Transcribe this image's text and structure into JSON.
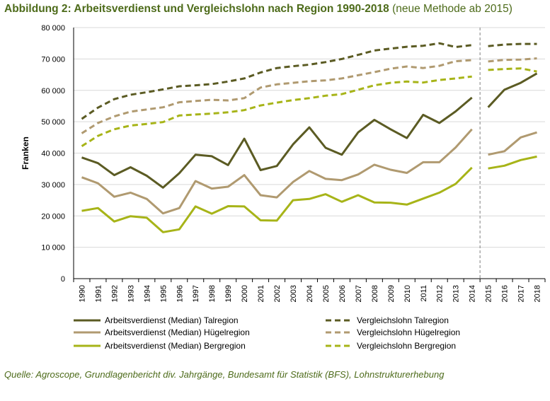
{
  "title": {
    "main": "Abbildung 2: Arbeitsverdienst und Vergleichslohn nach Region 1990-2018",
    "note": "(neue Methode ab 2015)"
  },
  "source": "Quelle: Agroscope, Grundlagenbericht div. Jahrgänge, Bundesamt für Statistik (BFS), Lohnstrukturerhebung",
  "colors": {
    "tal": "#5b5b23",
    "huegel": "#b09a70",
    "berg": "#a7b418",
    "grid": "#d9d9d9",
    "axis": "#000000",
    "title": "#4d6b1a",
    "divider": "#7f7f7f"
  },
  "chart_data": {
    "type": "line",
    "title": "Abbildung 2: Arbeitsverdienst und Vergleichslohn nach Region 1990-2018",
    "ylabel": "Franken",
    "xlabel": "",
    "ylim": [
      0,
      80000
    ],
    "yticks": [
      0,
      10000,
      20000,
      30000,
      40000,
      50000,
      60000,
      70000,
      80000
    ],
    "ytick_labels": [
      "0",
      "10 000",
      "20 000",
      "30 000",
      "40 000",
      "50 000",
      "60 000",
      "70 000",
      "80 000"
    ],
    "grid": true,
    "legend_position": "bottom",
    "method_break_after": 2014,
    "x": [
      1990,
      1991,
      1992,
      1993,
      1994,
      1995,
      1996,
      1997,
      1998,
      1999,
      2000,
      2001,
      2002,
      2003,
      2004,
      2005,
      2006,
      2007,
      2008,
      2009,
      2010,
      2011,
      2012,
      2013,
      2014,
      2015,
      2016,
      2017,
      2018
    ],
    "series": [
      {
        "name": "Arbeitsverdienst (Median) Talregion",
        "style": "solid",
        "color": "#5b5b23",
        "values": [
          38600,
          36800,
          33000,
          35500,
          32800,
          29000,
          33600,
          39500,
          39000,
          36200,
          44600,
          34600,
          35900,
          42800,
          48200,
          41700,
          39500,
          46600,
          50600,
          47600,
          44800,
          52200,
          49600,
          53300,
          57700,
          54600,
          60200,
          62400,
          65400
        ]
      },
      {
        "name": "Arbeitsverdienst (Median) Hügelregion",
        "style": "solid",
        "color": "#b09a70",
        "values": [
          32300,
          30400,
          26100,
          27400,
          25400,
          20800,
          22500,
          31100,
          28700,
          29300,
          33000,
          26600,
          25900,
          30800,
          34300,
          31800,
          31400,
          33200,
          36300,
          34700,
          33700,
          37100,
          37100,
          41800,
          47600,
          39500,
          40600,
          45000,
          46600
        ]
      },
      {
        "name": "Arbeitsverdienst (Median) Bergregion",
        "style": "solid",
        "color": "#a7b418",
        "values": [
          21600,
          22500,
          18200,
          19900,
          19400,
          14800,
          15700,
          23000,
          20700,
          23100,
          23000,
          18600,
          18500,
          25000,
          25400,
          26900,
          24500,
          26600,
          24300,
          24200,
          23600,
          25500,
          27400,
          30200,
          35400,
          35100,
          36000,
          37800,
          38900
        ]
      },
      {
        "name": "Vergleichslohn Talregion",
        "style": "dashed",
        "color": "#5b5b23",
        "values": [
          50900,
          54500,
          57200,
          58600,
          59400,
          60300,
          61300,
          61600,
          62000,
          62800,
          63800,
          65700,
          67100,
          67700,
          68200,
          69000,
          70000,
          71300,
          72700,
          73300,
          73900,
          74200,
          75000,
          73800,
          74400,
          74100,
          74600,
          74800,
          74800
        ]
      },
      {
        "name": "Vergleichslohn Hügelregion",
        "style": "dashed",
        "color": "#b09a70",
        "values": [
          46300,
          49600,
          51700,
          53200,
          53900,
          54600,
          56200,
          56600,
          57000,
          56800,
          57500,
          60900,
          61900,
          62400,
          62900,
          63200,
          63800,
          64800,
          65800,
          66900,
          67600,
          67100,
          67800,
          69300,
          69600,
          69200,
          69700,
          69800,
          70200
        ]
      },
      {
        "name": "Vergleichslohn Bergregion",
        "style": "dashed",
        "color": "#a7b418",
        "values": [
          42200,
          45500,
          47600,
          48800,
          49300,
          49900,
          52000,
          52300,
          52600,
          53000,
          53700,
          55200,
          56100,
          56900,
          57500,
          58300,
          58800,
          60200,
          61600,
          62400,
          62800,
          62500,
          63300,
          63800,
          64400,
          66500,
          66800,
          67000,
          66000
        ]
      }
    ]
  }
}
